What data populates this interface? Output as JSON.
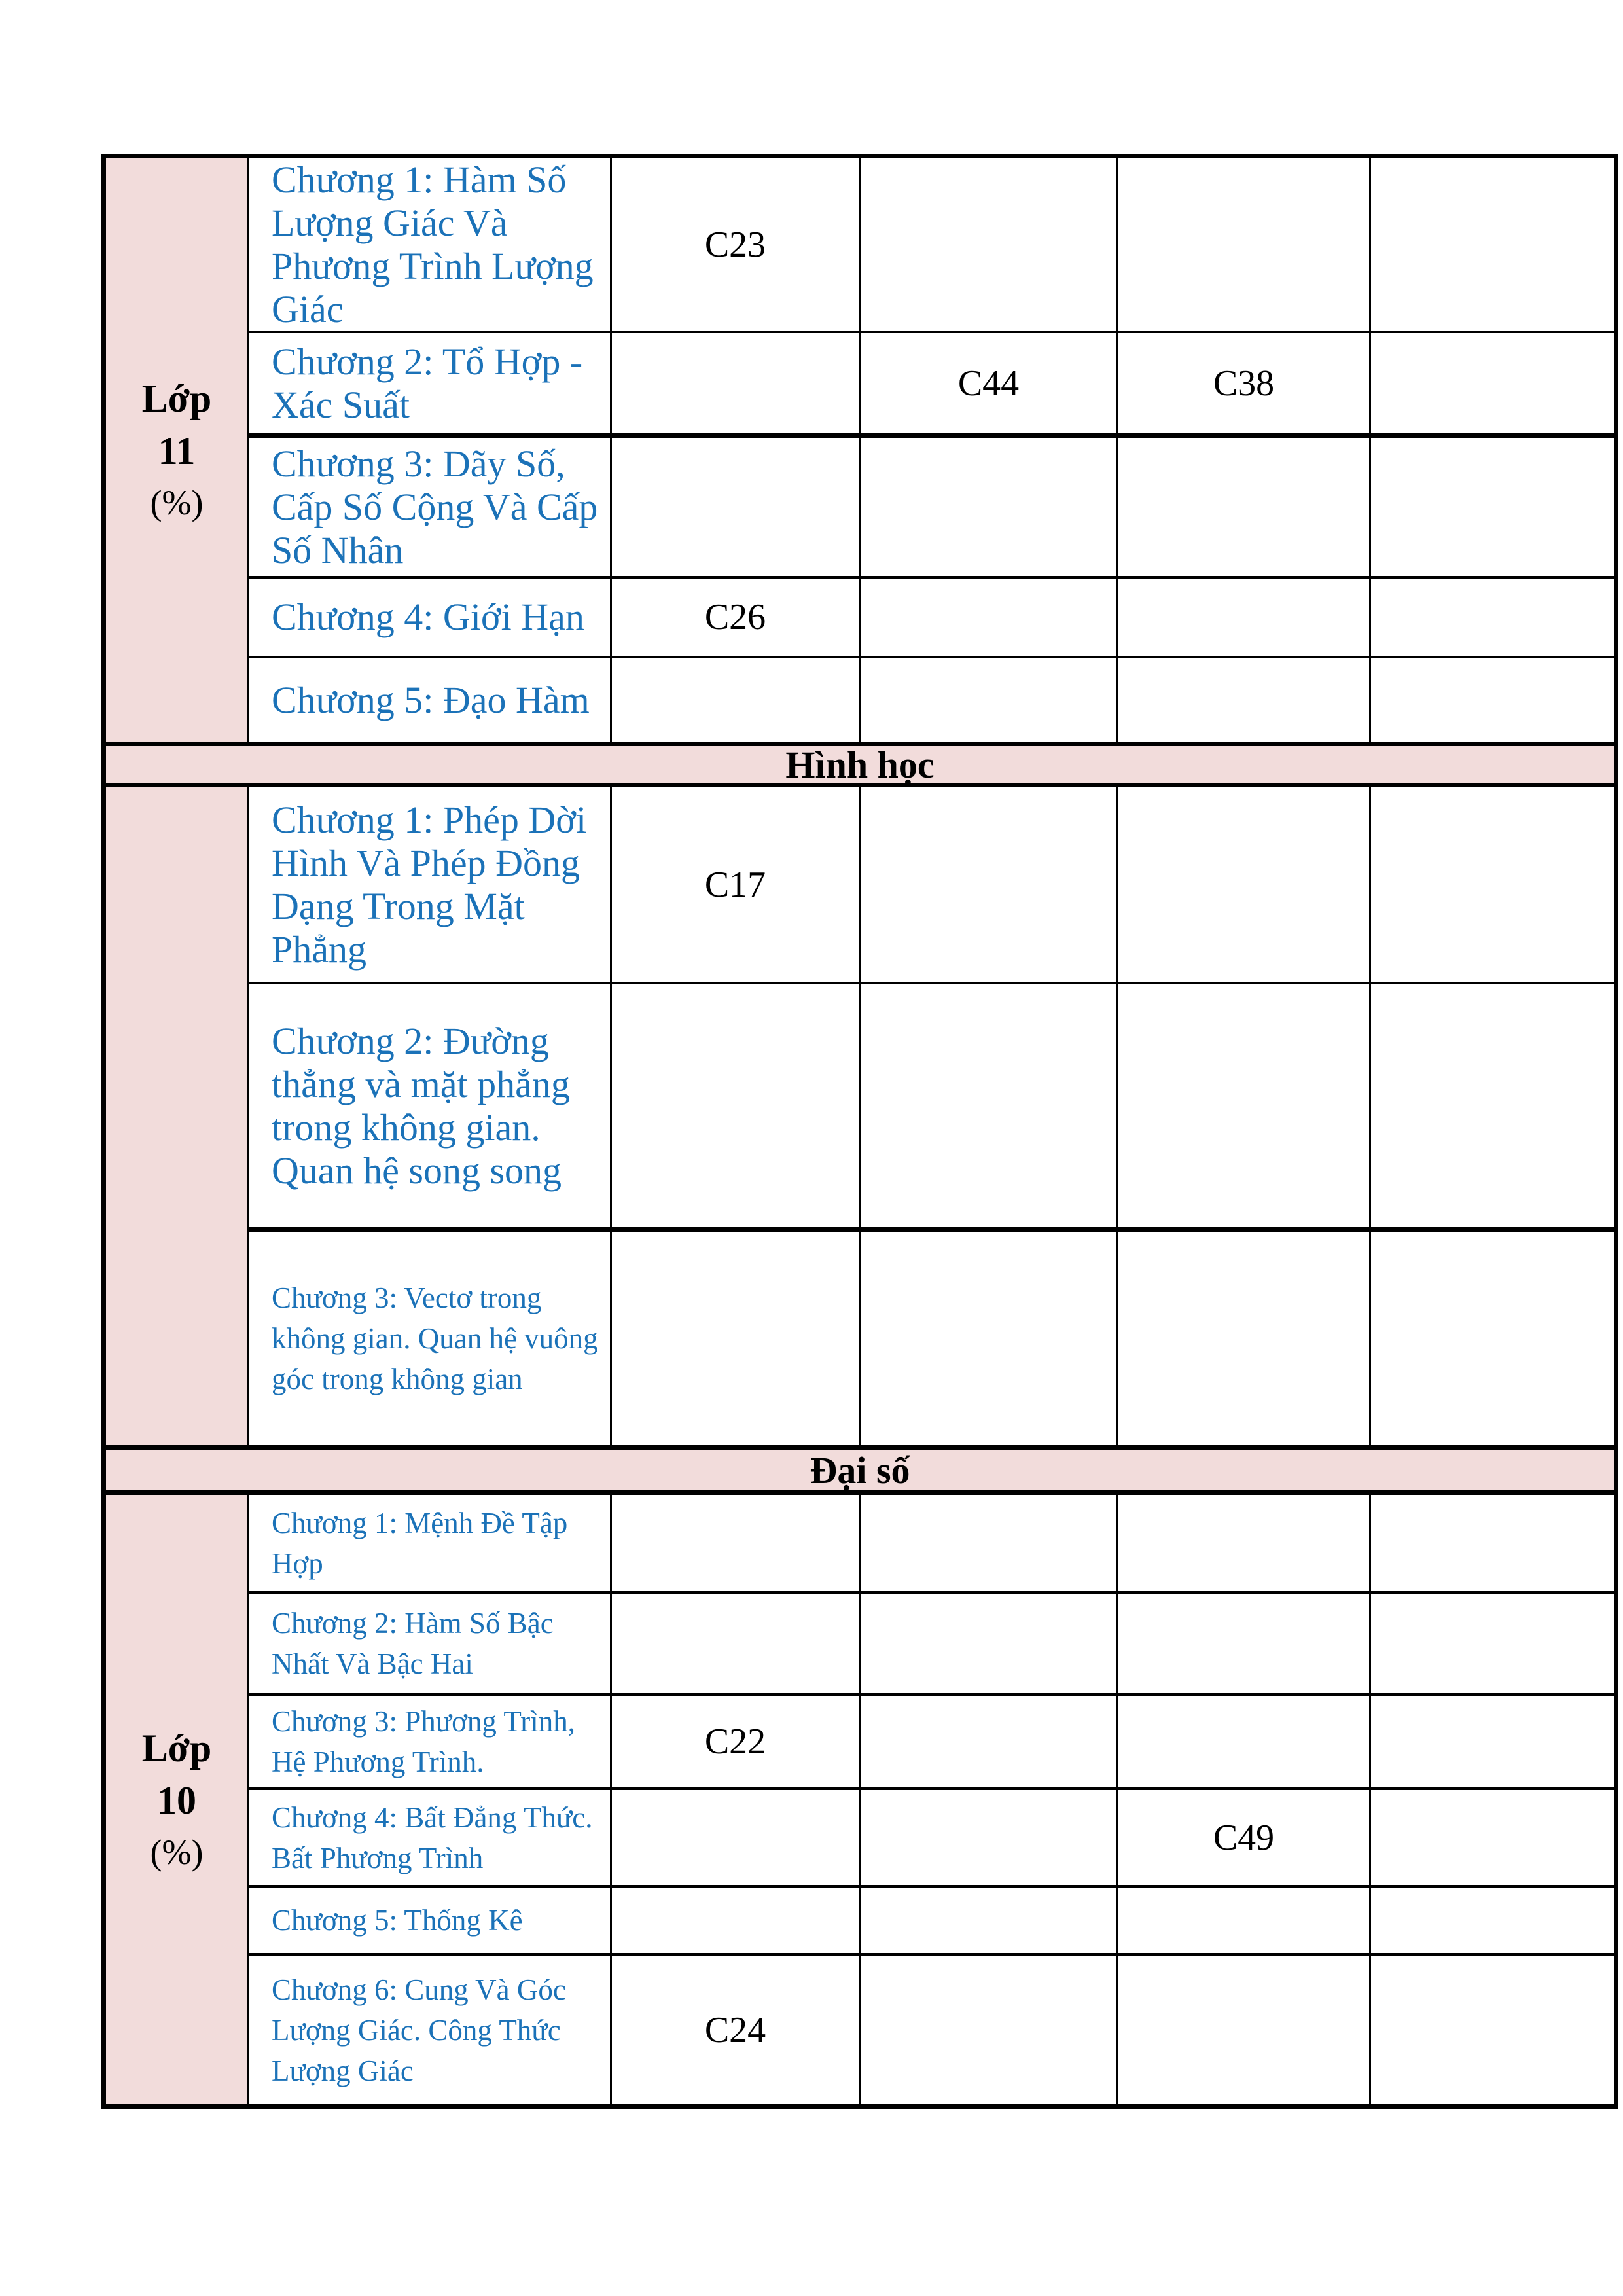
{
  "page": {
    "background": "#ffffff"
  },
  "colors": {
    "section_fill_pink": "#F2DCDB",
    "chapter_text_blue": "#1B72B8",
    "value_text_black": "#000000",
    "border_black": "#000000"
  },
  "class_labels": [
    {
      "line1": "Lớp",
      "line2": "11",
      "line3": "(%)"
    },
    {
      "line1": "Lớp",
      "line2": "10",
      "line3": "(%)"
    }
  ],
  "section_headers": {
    "geometry": "Hình học",
    "algebra": "Đại số"
  },
  "rows": [
    {
      "chapter": "Chương 1: Hàm Số Lượng Giác Và Phương Trình Lượng Giác",
      "values": [
        "C23",
        "",
        "",
        ""
      ]
    },
    {
      "chapter": "Chương 2: Tổ Hợp - Xác Suất",
      "values": [
        "",
        "C44",
        "C38",
        ""
      ]
    },
    {
      "chapter": "Chương 3: Dãy Số, Cấp Số Cộng Và Cấp Số Nhân",
      "values": [
        "",
        "",
        "",
        ""
      ]
    },
    {
      "chapter": "Chương 4: Giới Hạn",
      "values": [
        "C26",
        "",
        "",
        ""
      ]
    },
    {
      "chapter": "Chương 5: Đạo Hàm",
      "values": [
        "",
        "",
        "",
        ""
      ]
    },
    {
      "chapter": "Chương 1: Phép Dời Hình Và Phép Đồng Dạng Trong Mặt Phẳng",
      "values": [
        "C17",
        "",
        "",
        ""
      ]
    },
    {
      "chapter": "Chương 2: Đường thẳng và mặt phẳng trong không gian. Quan hệ song song",
      "values": [
        "",
        "",
        "",
        ""
      ]
    },
    {
      "chapter": "Chương 3: Vectơ trong không gian. Quan hệ vuông góc trong không gian",
      "values": [
        "",
        "",
        "",
        ""
      ]
    },
    {
      "chapter": "Chương 1: Mệnh Đề Tập Hợp",
      "values": [
        "",
        "",
        "",
        ""
      ]
    },
    {
      "chapter": "Chương 2: Hàm Số Bậc Nhất Và Bậc Hai",
      "values": [
        "",
        "",
        "",
        ""
      ]
    },
    {
      "chapter": "Chương 3: Phương Trình, Hệ Phương Trình.",
      "values": [
        "C22",
        "",
        "",
        ""
      ]
    },
    {
      "chapter": "Chương 4: Bất Đẳng Thức. Bất Phương Trình",
      "values": [
        "",
        "",
        "C49",
        ""
      ]
    },
    {
      "chapter": "Chương 5: Thống Kê",
      "values": [
        "",
        "",
        "",
        ""
      ]
    },
    {
      "chapter": "Chương 6: Cung Và Góc Lượng Giác. Công Thức Lượng Giác",
      "values": [
        "C24",
        "",
        "",
        ""
      ]
    }
  ]
}
